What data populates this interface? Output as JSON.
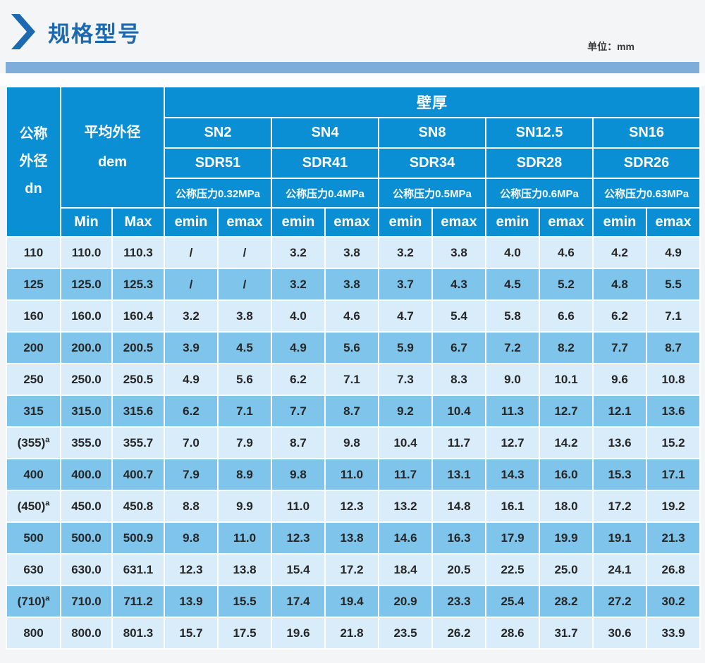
{
  "page": {
    "title": "规格型号",
    "unit_label": "单位：mm"
  },
  "colors": {
    "header_blue": "#0a8fd5",
    "row_light": "#d8ecfa",
    "row_dark": "#7ec4eb",
    "bar_blue": "#7fadd9",
    "title_blue": "#1b6ab1",
    "text_dark": "#262626"
  },
  "table": {
    "dn_header_line1": "公称",
    "dn_header_line2": "外径",
    "dn_header_line3": "dn",
    "dem_header_line1": "平均外径",
    "dem_header_line2": "dem",
    "wall_thickness_label": "壁厚",
    "min_label": "Min",
    "max_label": "Max",
    "emin_label": "emin",
    "emax_label": "emax",
    "groups": [
      {
        "sn": "SN2",
        "sdr": "SDR51",
        "pressure": "公称压力0.32MPa"
      },
      {
        "sn": "SN4",
        "sdr": "SDR41",
        "pressure": "公称压力0.4MPa"
      },
      {
        "sn": "SN8",
        "sdr": "SDR34",
        "pressure": "公称压力0.5MPa"
      },
      {
        "sn": "SN12.5",
        "sdr": "SDR28",
        "pressure": "公称压力0.6MPa"
      },
      {
        "sn": "SN16",
        "sdr": "SDR26",
        "pressure": "公称压力0.63MPa"
      }
    ],
    "rows": [
      {
        "dn": "110",
        "sup": "",
        "min": "110.0",
        "max": "110.3",
        "values": [
          "/",
          "/",
          "3.2",
          "3.8",
          "3.2",
          "3.8",
          "4.0",
          "4.6",
          "4.2",
          "4.9"
        ]
      },
      {
        "dn": "125",
        "sup": "",
        "min": "125.0",
        "max": "125.3",
        "values": [
          "/",
          "/",
          "3.2",
          "3.8",
          "3.7",
          "4.3",
          "4.5",
          "5.2",
          "4.8",
          "5.5"
        ]
      },
      {
        "dn": "160",
        "sup": "",
        "min": "160.0",
        "max": "160.4",
        "values": [
          "3.2",
          "3.8",
          "4.0",
          "4.6",
          "4.7",
          "5.4",
          "5.8",
          "6.6",
          "6.2",
          "7.1"
        ]
      },
      {
        "dn": "200",
        "sup": "",
        "min": "200.0",
        "max": "200.5",
        "values": [
          "3.9",
          "4.5",
          "4.9",
          "5.6",
          "5.9",
          "6.7",
          "7.2",
          "8.2",
          "7.7",
          "8.7"
        ]
      },
      {
        "dn": "250",
        "sup": "",
        "min": "250.0",
        "max": "250.5",
        "values": [
          "4.9",
          "5.6",
          "6.2",
          "7.1",
          "7.3",
          "8.3",
          "9.0",
          "10.1",
          "9.6",
          "10.8"
        ]
      },
      {
        "dn": "315",
        "sup": "",
        "min": "315.0",
        "max": "315.6",
        "values": [
          "6.2",
          "7.1",
          "7.7",
          "8.7",
          "9.2",
          "10.4",
          "11.3",
          "12.7",
          "12.1",
          "13.6"
        ]
      },
      {
        "dn": "(355)",
        "sup": "a",
        "min": "355.0",
        "max": "355.7",
        "values": [
          "7.0",
          "7.9",
          "8.7",
          "9.8",
          "10.4",
          "11.7",
          "12.7",
          "14.2",
          "13.6",
          "15.2"
        ]
      },
      {
        "dn": "400",
        "sup": "",
        "min": "400.0",
        "max": "400.7",
        "values": [
          "7.9",
          "8.9",
          "9.8",
          "11.0",
          "11.7",
          "13.1",
          "14.3",
          "16.0",
          "15.3",
          "17.1"
        ]
      },
      {
        "dn": "(450)",
        "sup": "a",
        "min": "450.0",
        "max": "450.8",
        "values": [
          "8.8",
          "9.9",
          "11.0",
          "12.3",
          "13.2",
          "14.8",
          "16.1",
          "18.0",
          "17.2",
          "19.2"
        ]
      },
      {
        "dn": "500",
        "sup": "",
        "min": "500.0",
        "max": "500.9",
        "values": [
          "9.8",
          "11.0",
          "12.3",
          "13.8",
          "14.6",
          "16.3",
          "17.9",
          "19.9",
          "19.1",
          "21.3"
        ]
      },
      {
        "dn": "630",
        "sup": "",
        "min": "630.0",
        "max": "631.1",
        "values": [
          "12.3",
          "13.8",
          "15.4",
          "17.2",
          "18.4",
          "20.5",
          "22.5",
          "25.0",
          "24.1",
          "26.8"
        ]
      },
      {
        "dn": "(710)",
        "sup": "a",
        "min": "710.0",
        "max": "711.2",
        "values": [
          "13.9",
          "15.5",
          "17.4",
          "19.4",
          "20.9",
          "23.3",
          "25.4",
          "28.2",
          "27.2",
          "30.2"
        ]
      },
      {
        "dn": "800",
        "sup": "",
        "min": "800.0",
        "max": "801.3",
        "values": [
          "15.7",
          "17.5",
          "19.6",
          "21.8",
          "23.5",
          "26.2",
          "28.6",
          "31.7",
          "30.6",
          "33.9"
        ]
      }
    ]
  }
}
